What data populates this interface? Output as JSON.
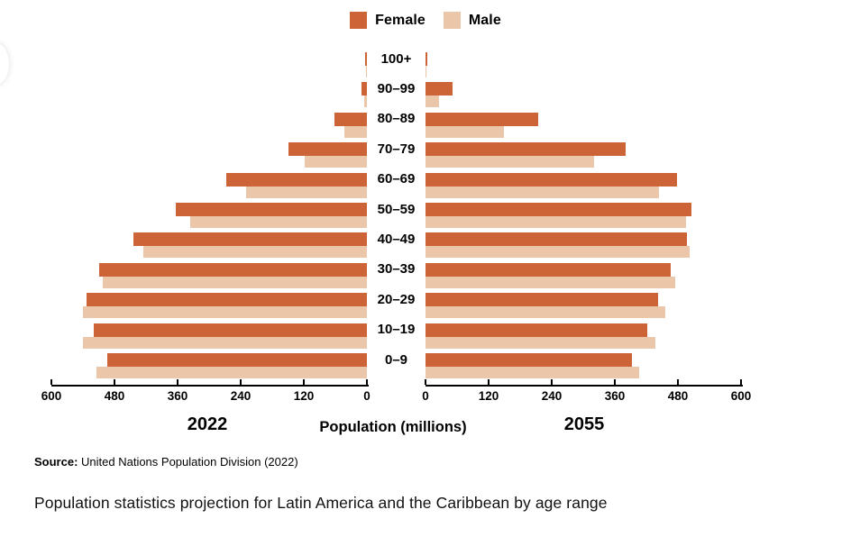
{
  "legend": {
    "female_label": "Female",
    "male_label": "Male"
  },
  "colors": {
    "female": "#CC6438",
    "male": "#ECC6A8",
    "axis": "#000000"
  },
  "chart_data": {
    "type": "bar",
    "subtype": "population-pyramid",
    "title": "Population statistics projection for Latin America and the Caribbean by age range",
    "categories": [
      "100+",
      "90–99",
      "80–89",
      "70–79",
      "60–69",
      "50–59",
      "40–49",
      "30–39",
      "20–29",
      "10–19",
      "0–9"
    ],
    "left": {
      "title": "2022",
      "female": [
        3,
        10,
        62,
        149,
        267,
        363,
        444,
        509,
        533,
        519,
        494
      ],
      "male": [
        1,
        5,
        43,
        118,
        230,
        336,
        425,
        502,
        540,
        540,
        514
      ]
    },
    "right": {
      "title": "2055",
      "female": [
        4,
        51,
        214,
        381,
        478,
        506,
        497,
        466,
        442,
        422,
        393
      ],
      "male": [
        2,
        26,
        149,
        320,
        444,
        495,
        502,
        475,
        456,
        437,
        406
      ]
    },
    "axis": {
      "max": 600,
      "ticks": [
        0,
        120,
        240,
        360,
        480,
        600
      ],
      "xlabel": "Population (millions)"
    },
    "legend_position": "top-center",
    "grid": false
  },
  "footer": {
    "source_label": "Source:",
    "source_text": " United Nations Population Division (2022)",
    "caption": "Population statistics projection for Latin America and the Caribbean by age range"
  }
}
